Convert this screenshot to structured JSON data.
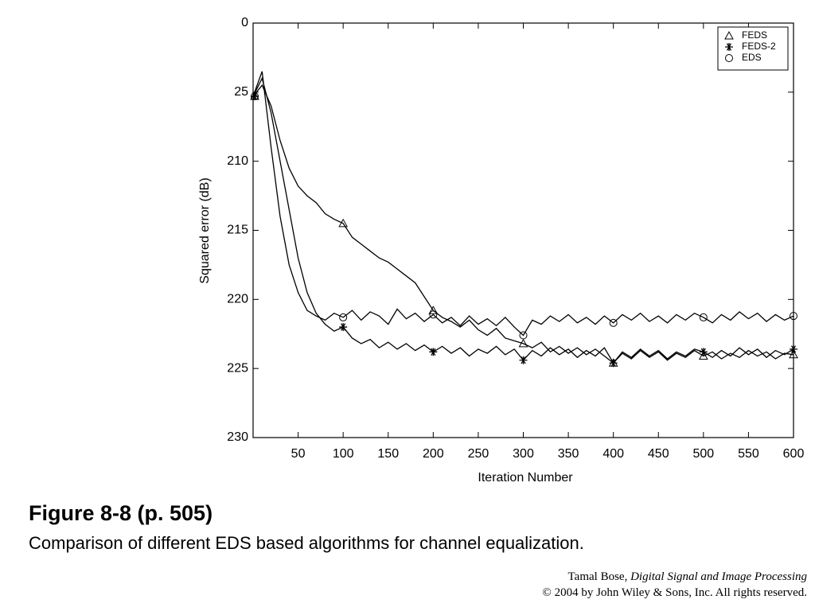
{
  "chart_data": {
    "type": "line",
    "ylabel": "Squared error (dB)",
    "xlabel": "Iteration Number",
    "x": [
      0,
      10,
      20,
      30,
      40,
      50,
      60,
      70,
      80,
      90,
      100,
      110,
      120,
      130,
      140,
      150,
      160,
      170,
      180,
      190,
      200,
      210,
      220,
      230,
      240,
      250,
      260,
      270,
      280,
      290,
      300,
      310,
      320,
      330,
      340,
      350,
      360,
      370,
      380,
      390,
      400,
      410,
      420,
      430,
      440,
      450,
      460,
      470,
      480,
      490,
      500,
      510,
      520,
      530,
      540,
      550,
      560,
      570,
      580,
      590,
      600
    ],
    "series": [
      {
        "name": "FEDS",
        "marker": "triangle",
        "color": "#000000",
        "values": [
          -5.3,
          -4.5,
          -6,
          -8.5,
          -10.5,
          -11.8,
          -12.5,
          -13,
          -13.8,
          -14.2,
          -14.5,
          -15.5,
          -16,
          -16.5,
          -17,
          -17.3,
          -17.8,
          -18.3,
          -18.8,
          -19.8,
          -20.8,
          -21.3,
          -21.6,
          -22,
          -21.5,
          -22.2,
          -22.6,
          -22.1,
          -22.8,
          -23,
          -23.2,
          -23.5,
          -23.1,
          -23.8,
          -23.4,
          -23.9,
          -23.5,
          -24,
          -23.6,
          -24.1,
          -24.6,
          -23.9,
          -24.3,
          -23.7,
          -24.2,
          -23.8,
          -24.4,
          -23.9,
          -24.2,
          -23.7,
          -24.1,
          -23.8,
          -24.3,
          -23.9,
          -24.2,
          -23.7,
          -24.1,
          -23.8,
          -24.3,
          -23.9,
          -24
        ]
      },
      {
        "name": "FEDS-2",
        "marker": "asterisk",
        "color": "#000000",
        "values": [
          -5.3,
          -4,
          -6.5,
          -10,
          -13.5,
          -17,
          -19.5,
          -21,
          -21.8,
          -22.3,
          -22,
          -22.8,
          -23.2,
          -22.9,
          -23.5,
          -23.1,
          -23.6,
          -23.2,
          -23.7,
          -23.3,
          -23.8,
          -23.4,
          -23.9,
          -23.5,
          -24.1,
          -23.6,
          -23.9,
          -23.4,
          -24,
          -23.6,
          -24.4,
          -23.7,
          -24.1,
          -23.5,
          -24,
          -23.6,
          -24.2,
          -23.7,
          -24.1,
          -23.5,
          -24.6,
          -23.8,
          -24.2,
          -23.6,
          -24.1,
          -23.7,
          -24.3,
          -23.8,
          -24.1,
          -23.6,
          -23.8,
          -24.2,
          -23.7,
          -24.1,
          -23.5,
          -24,
          -23.6,
          -24.2,
          -23.7,
          -24,
          -23.6
        ]
      },
      {
        "name": "EDS",
        "marker": "circle",
        "color": "#000000",
        "values": [
          -5.3,
          -3.5,
          -9,
          -14,
          -17.5,
          -19.5,
          -20.8,
          -21.2,
          -21.5,
          -21,
          -21.3,
          -20.8,
          -21.5,
          -20.9,
          -21.2,
          -21.8,
          -20.7,
          -21.4,
          -21,
          -21.6,
          -21.1,
          -21.7,
          -21.3,
          -21.9,
          -21.2,
          -21.8,
          -21.4,
          -21.9,
          -21.3,
          -22,
          -22.6,
          -21.5,
          -21.8,
          -21.2,
          -21.6,
          -21.1,
          -21.7,
          -21.3,
          -21.8,
          -21.2,
          -21.7,
          -21.1,
          -21.5,
          -21,
          -21.6,
          -21.2,
          -21.7,
          -21.1,
          -21.5,
          -21,
          -21.3,
          -21.7,
          -21.1,
          -21.5,
          -20.9,
          -21.4,
          -21,
          -21.6,
          -21.1,
          -21.5,
          -21.2
        ]
      }
    ],
    "marker_every": 100,
    "xlim": [
      0,
      600
    ],
    "xticks": [
      50,
      100,
      150,
      200,
      250,
      300,
      350,
      400,
      450,
      500,
      550,
      600
    ],
    "ylim": [
      -30,
      0
    ],
    "yticks": [
      0,
      {
        "value": -5,
        "label": "25"
      },
      {
        "value": -10,
        "label": "210"
      },
      {
        "value": -15,
        "label": "215"
      },
      {
        "value": -20,
        "label": "220"
      },
      {
        "value": -25,
        "label": "225"
      },
      {
        "value": -30,
        "label": "230"
      }
    ],
    "legend": "upper right",
    "grid": false
  },
  "slide": {
    "figure_label": "Figure 8-8  (p. 505)",
    "caption": "Comparison of different EDS based algorithms for channel equalization.",
    "credit": {
      "author": "Tamal Bose,",
      "book": "Digital Signal and Image Processing",
      "copyright": "© 2004 by John Wiley & Sons, Inc.  All rights reserved."
    }
  }
}
